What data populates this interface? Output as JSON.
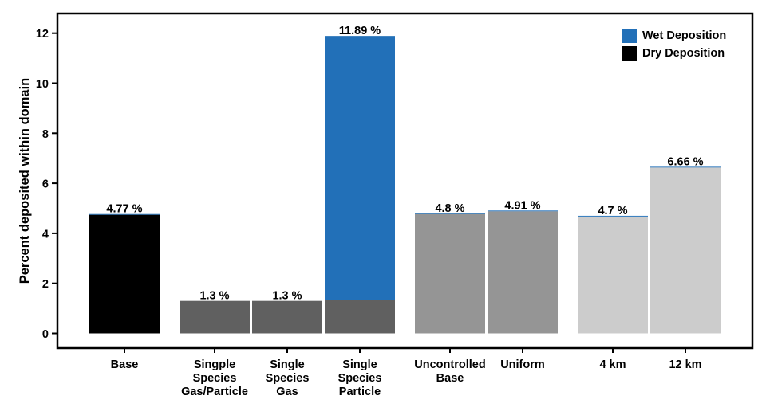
{
  "chart_data": {
    "type": "bar",
    "stacked": true,
    "ylabel": "Percent deposited within domain",
    "xlabel": "",
    "ylim": [
      0,
      12.6
    ],
    "yticks": [
      0,
      2,
      4,
      6,
      8,
      10,
      12
    ],
    "categories": [
      [
        "Base"
      ],
      [
        "Singple",
        "Species",
        "Gas/Particle"
      ],
      [
        "Single",
        "Species",
        "Gas"
      ],
      [
        "Single",
        "Species",
        "Particle"
      ],
      [
        "Uncontrolled",
        "Base"
      ],
      [
        "Uniform"
      ],
      [
        "4 km"
      ],
      [
        "12 km"
      ]
    ],
    "groups": [
      [
        0
      ],
      [
        1,
        2,
        3
      ],
      [
        4,
        5
      ],
      [
        6,
        7
      ]
    ],
    "dry_colors": [
      "#000000",
      "#606060",
      "#606060",
      "#606060",
      "#959595",
      "#959595",
      "#cccccc",
      "#cccccc"
    ],
    "series": [
      {
        "name": "Dry Deposition",
        "color": "#000000",
        "values": [
          4.74,
          1.3,
          1.3,
          1.35,
          4.77,
          4.88,
          4.67,
          6.63
        ]
      },
      {
        "name": "Wet Deposition",
        "color": "#2270b8",
        "values": [
          0.03,
          0.0,
          0.0,
          10.54,
          0.03,
          0.03,
          0.03,
          0.03
        ]
      }
    ],
    "labels": [
      "4.77 %",
      "1.3 %",
      "1.3 %",
      "11.89 %",
      "4.8 %",
      "4.91 %",
      "4.7 %",
      "6.66 %"
    ],
    "legend": {
      "position": "top-right",
      "entries": [
        {
          "name": "Wet Deposition",
          "color": "#2270b8"
        },
        {
          "name": "Dry Deposition",
          "color": "#000000"
        }
      ]
    }
  }
}
